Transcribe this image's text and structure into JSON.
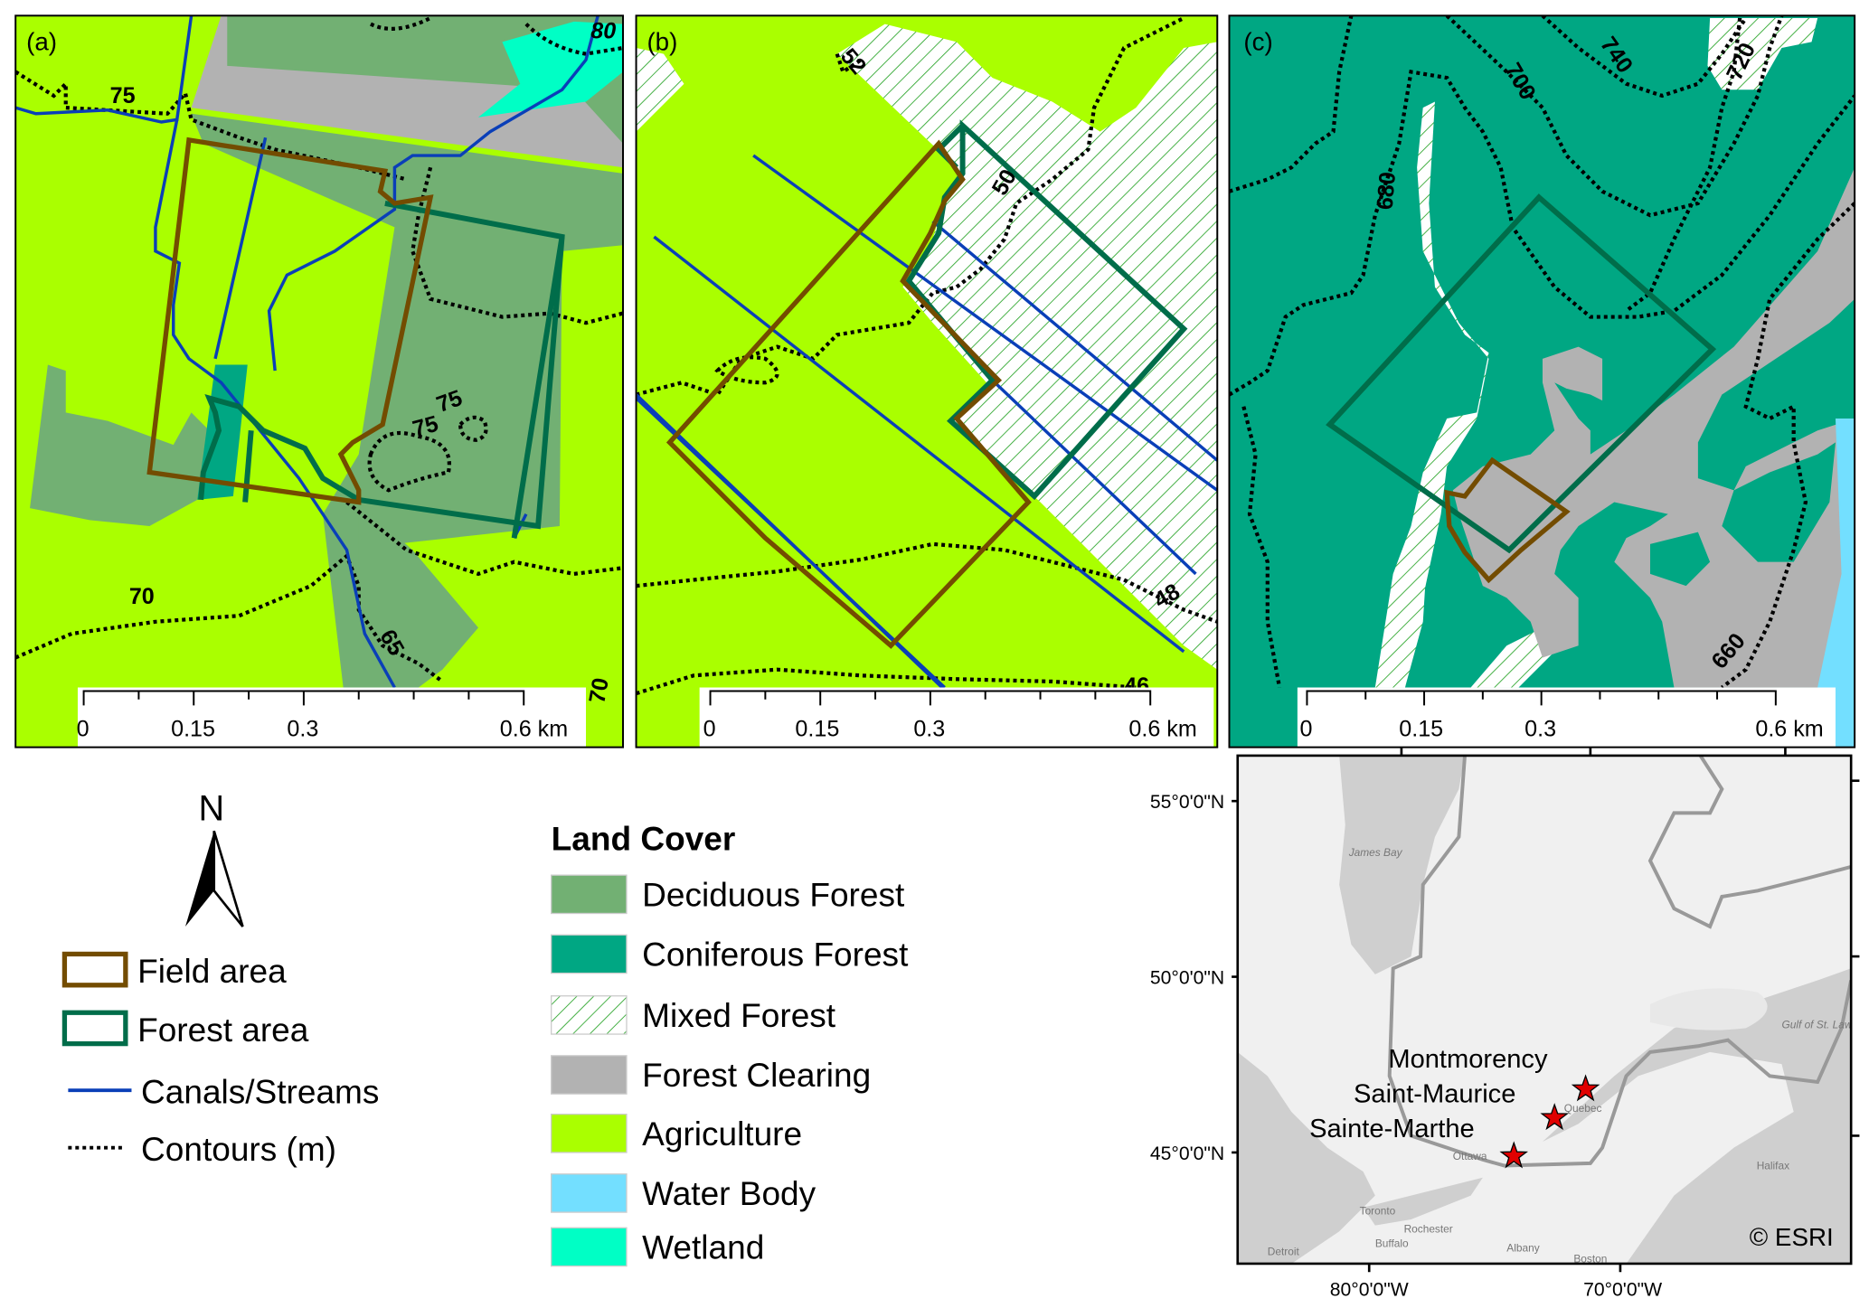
{
  "colors": {
    "deciduous": "#72b073",
    "coniferous": "#00a783",
    "mixed_hatch": "#2aa52a",
    "clearing": "#b2b2b2",
    "agriculture": "#aaff00",
    "water": "#73dfff",
    "wetland": "#00ffc5",
    "field_area": "#734c00",
    "forest_area": "#006d4a",
    "streams": "#0a3fb8",
    "site_marker": "#e00000"
  },
  "panels": [
    {
      "label": "(a)",
      "contour_labels": [
        "75",
        "80",
        "75",
        "75",
        "70",
        "65",
        "70"
      ]
    },
    {
      "label": "(b)",
      "contour_labels": [
        "52",
        "50",
        "48",
        "46"
      ]
    },
    {
      "label": "(c)",
      "contour_labels": [
        "740",
        "700",
        "720",
        "680",
        "660"
      ]
    }
  ],
  "scale_bar": {
    "ticks": [
      "0",
      "0.15",
      "0.3",
      "0.6 km"
    ]
  },
  "north_arrow": {
    "label": "N"
  },
  "legend_lines": [
    {
      "label": "Field area"
    },
    {
      "label": "Forest area"
    },
    {
      "label": "Canals/Streams"
    },
    {
      "label": "Contours (m)"
    }
  ],
  "land_cover": {
    "title": "Land Cover",
    "items": [
      "Deciduous Forest",
      "Coniferous Forest",
      "Mixed Forest",
      "Forest Clearing",
      "Agriculture",
      "Water Body",
      "Wetland"
    ]
  },
  "inset_map": {
    "lat_labels": [
      "55°0'0\"N",
      "50°0'0\"N",
      "45°0'0\"N"
    ],
    "lon_labels": [
      "80°0'0\"W",
      "70°0'0\"W"
    ],
    "sites": [
      "Montmorency",
      "Saint-Maurice",
      "Sainte-Marthe"
    ],
    "basemap_labels": [
      "James Bay",
      "Quebec",
      "Ottawa",
      "Toronto",
      "Rochester",
      "Buffalo",
      "Detroit",
      "Albany",
      "Boston",
      "Halifax",
      "Gulf of St. Lawrence"
    ],
    "credit": "© ESRI"
  }
}
